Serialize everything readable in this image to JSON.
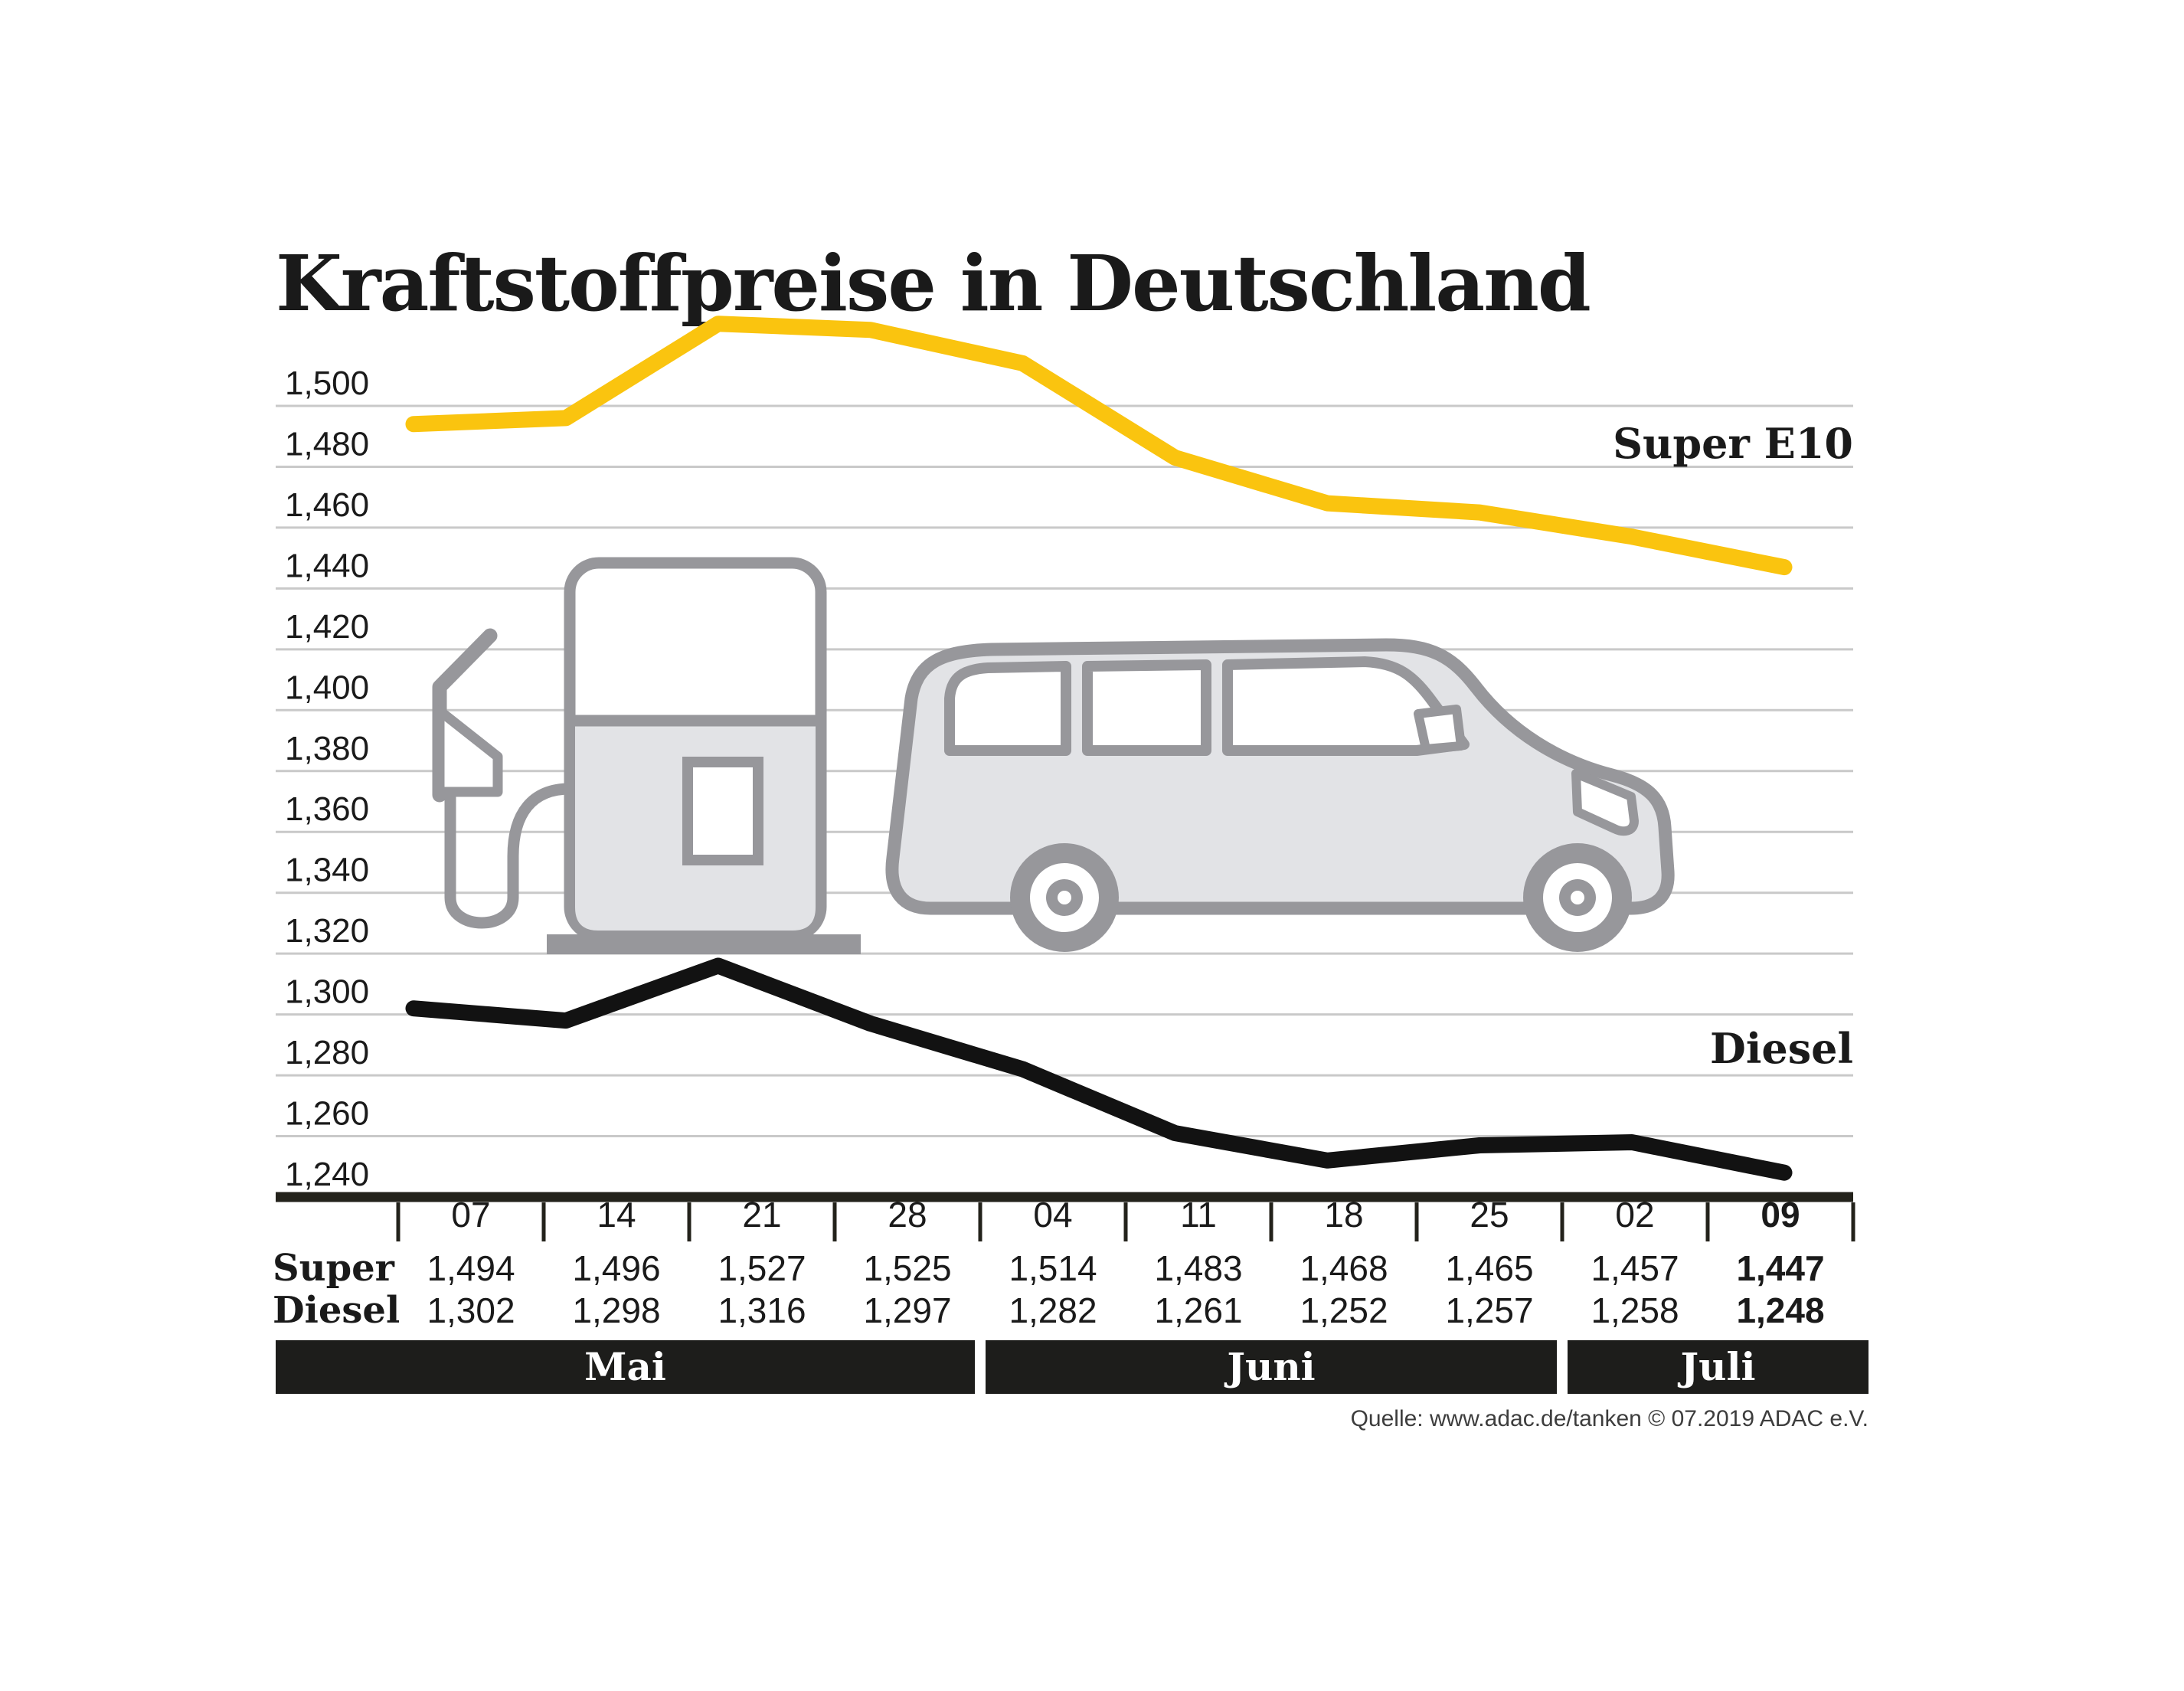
{
  "title": "Kraftstoffpreise in Deutschland",
  "source_note": "Quelle: www.adac.de/tanken   © 07.2019  ADAC e.V.",
  "icons": {
    "pump": "fuel-pump-icon",
    "car": "car-icon"
  },
  "colors": {
    "accent_yellow": "#FAC40F",
    "line_black": "#121212",
    "axis": "#23221b",
    "gridline": "#c9c9c9",
    "month_bar": "#1d1d1b",
    "text": "#1a1a1a",
    "icon_outline": "#97979b",
    "icon_fill": "#e2e3e6"
  },
  "chart_data": {
    "type": "line",
    "title": "Kraftstoffpreise in Deutschland",
    "xlabel": "",
    "ylabel": "",
    "grid": true,
    "decimal_style": "comma",
    "y_axis": {
      "min": 1240,
      "max": 1500,
      "step": 20
    },
    "categories": [
      "07",
      "14",
      "21",
      "28",
      "04",
      "11",
      "18",
      "25",
      "02",
      "09"
    ],
    "emphasized_category_index": 9,
    "months": [
      {
        "label": "Mai",
        "cells": 4
      },
      {
        "label": "Juni",
        "cells": 4
      },
      {
        "label": "Juli",
        "cells": 2
      }
    ],
    "series": [
      {
        "id": "super",
        "row_label": "Super",
        "legend": "Super E10",
        "color": "#FAC40F",
        "values": [
          1494,
          1496,
          1527,
          1525,
          1514,
          1483,
          1468,
          1465,
          1457,
          1447
        ]
      },
      {
        "id": "diesel",
        "row_label": "Diesel",
        "legend": "Diesel",
        "color": "#121212",
        "values": [
          1302,
          1298,
          1316,
          1297,
          1282,
          1261,
          1252,
          1257,
          1258,
          1248
        ]
      }
    ]
  }
}
